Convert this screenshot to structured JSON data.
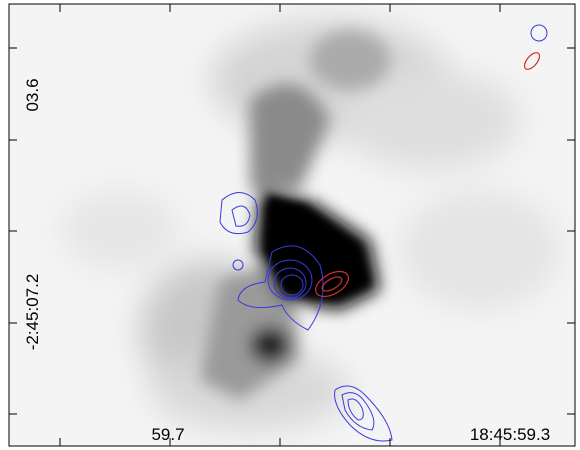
{
  "axes": {
    "x_tick_labels": [
      "59.7",
      "18:45:59.3"
    ],
    "y_tick_labels": [
      "03.6",
      "-2:45:07.2"
    ]
  }
}
